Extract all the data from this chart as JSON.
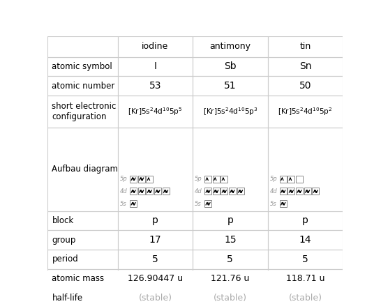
{
  "columns": [
    "iodine",
    "antimony",
    "tin"
  ],
  "rows": [
    "atomic symbol",
    "atomic number",
    "short electronic\nconfiguration",
    "Aufbau diagram",
    "block",
    "group",
    "period",
    "atomic mass",
    "half-life"
  ],
  "atomic_symbol": [
    "I",
    "Sb",
    "Sn"
  ],
  "atomic_number": [
    "53",
    "51",
    "50"
  ],
  "config": [
    "[Kr]5s$^2$4d$^{10}$5p$^5$",
    "[Kr]5s$^2$4d$^{10}$5p$^3$",
    "[Kr]5s$^2$4d$^{10}$5p$^2$"
  ],
  "block_vals": [
    "p",
    "p",
    "p"
  ],
  "group_vals": [
    "17",
    "15",
    "14"
  ],
  "period_vals": [
    "5",
    "5",
    "5"
  ],
  "atomic_mass": [
    "126.90447 u",
    "121.76 u",
    "118.71 u"
  ],
  "half_life": [
    "(stable)",
    "(stable)",
    "(stable)"
  ],
  "bg_color": "#ffffff",
  "text_color": "#000000",
  "gray_text": "#aaaaaa",
  "border_color": "#cccccc",
  "aufbau": {
    "iodine": {
      "5p": [
        2,
        2,
        1
      ],
      "4d": [
        2,
        2,
        2,
        2,
        2
      ],
      "5s": [
        2
      ]
    },
    "antimony": {
      "5p": [
        1,
        1,
        1
      ],
      "4d": [
        2,
        2,
        2,
        2,
        2
      ],
      "5s": [
        2
      ]
    },
    "tin": {
      "5p": [
        1,
        1,
        0
      ],
      "4d": [
        2,
        2,
        2,
        2,
        2
      ],
      "5s": [
        2
      ]
    }
  }
}
